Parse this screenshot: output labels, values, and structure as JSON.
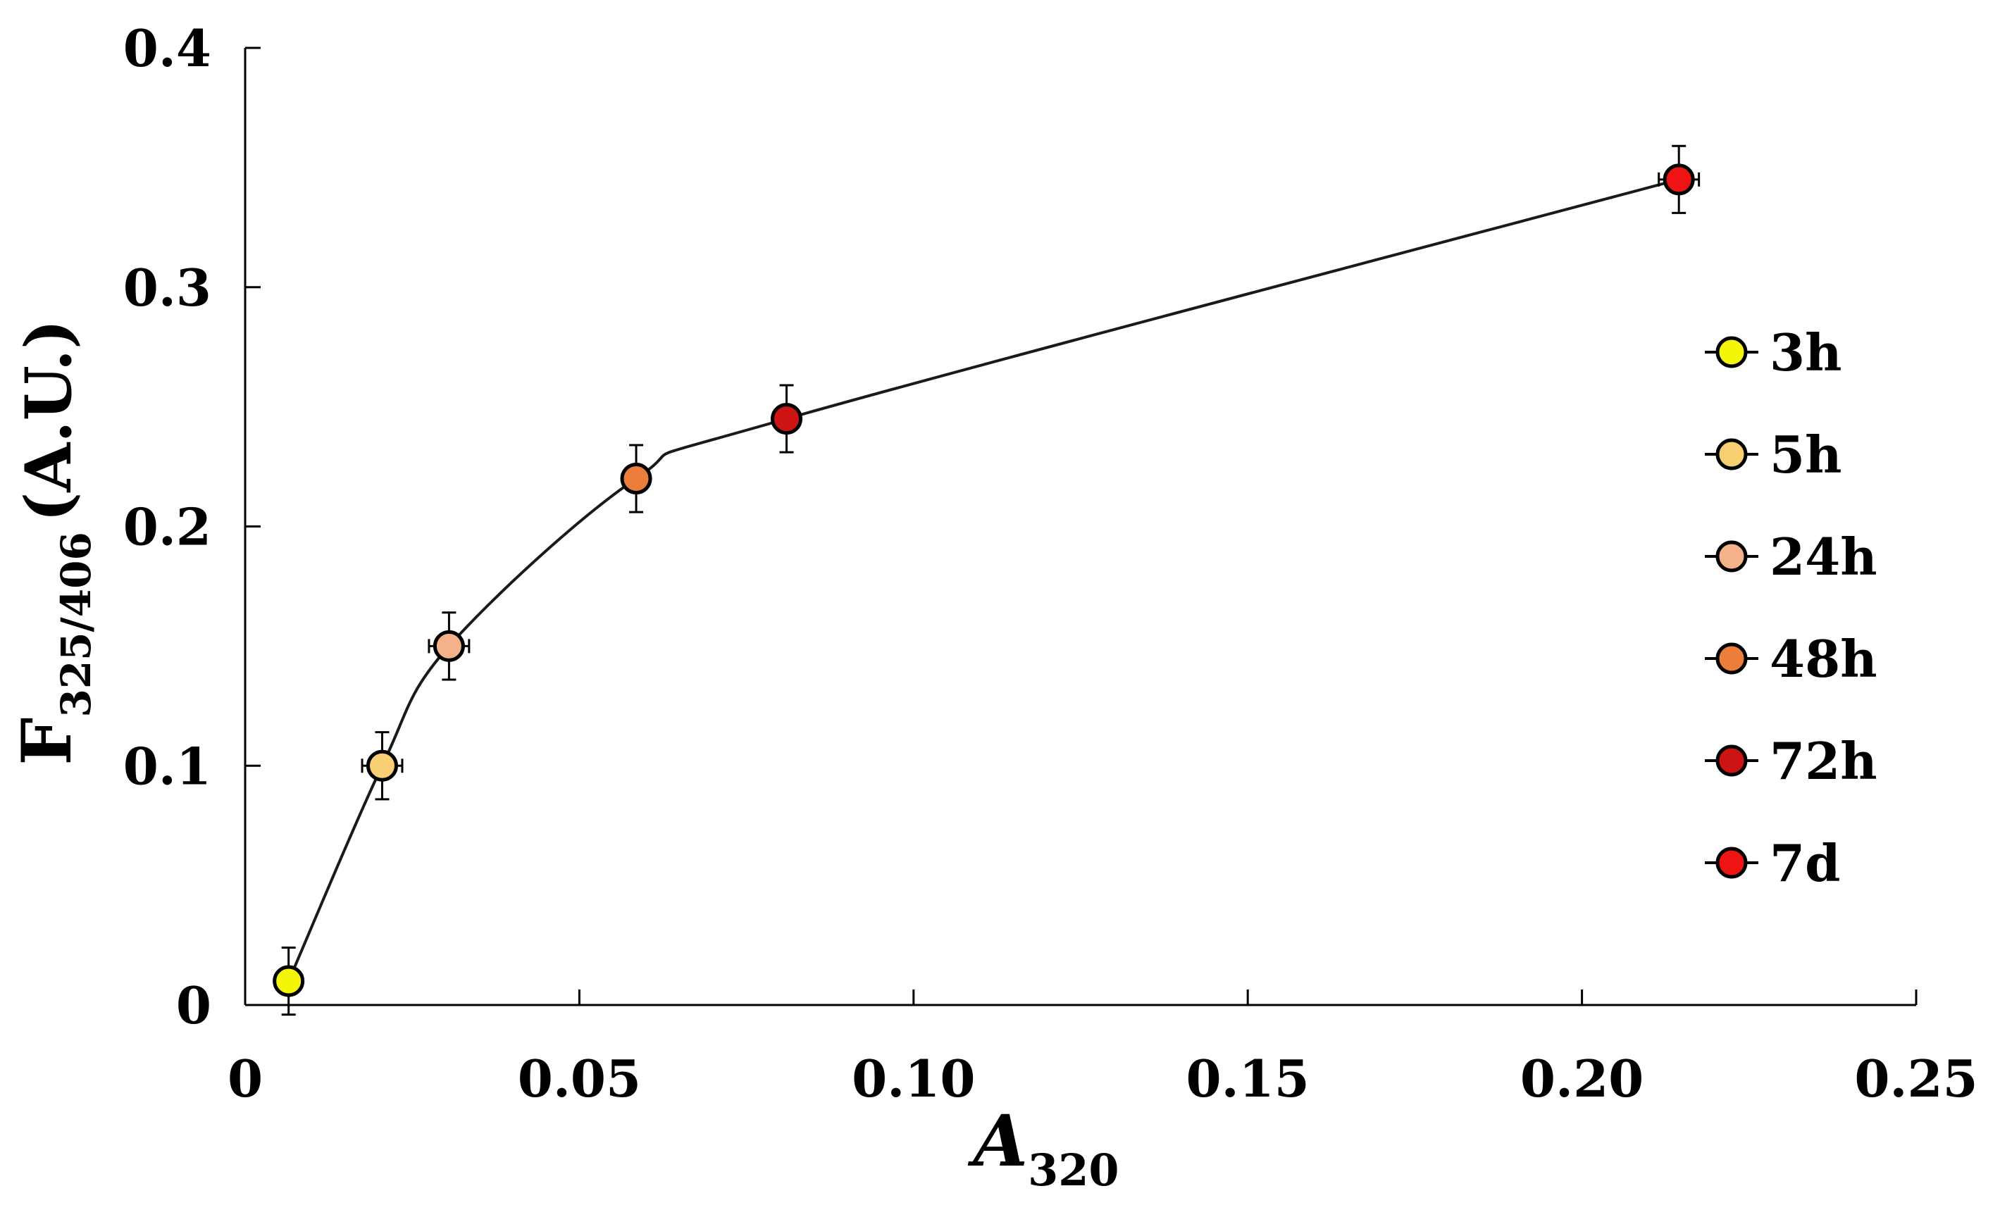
{
  "chart_data": {
    "type": "scatter",
    "xlabel_main": "A",
    "xlabel_sub": "320",
    "ylabel_main": "F",
    "ylabel_sub": "325/406",
    "ylabel_unit": "(A.U.)",
    "xlim": [
      0,
      0.25
    ],
    "ylim": [
      0,
      0.4
    ],
    "x_ticks": [
      0,
      0.05,
      0.1,
      0.15,
      0.2,
      0.25
    ],
    "x_tick_labels": [
      "0",
      "0.05",
      "0.10",
      "0.15",
      "0.20",
      "0.25"
    ],
    "y_ticks": [
      0,
      0.1,
      0.2,
      0.3,
      0.4
    ],
    "y_tick_labels": [
      "0",
      "0.1",
      "0.2",
      "0.3",
      "0.4"
    ],
    "grid": false,
    "legend_position": "right",
    "line_color": "#1a1a1a",
    "points": [
      {
        "label": "3h",
        "x": 0.0065,
        "y": 0.01,
        "xerr": 0.002,
        "yerr": 0.014,
        "color": "#f5f50a"
      },
      {
        "label": "5h",
        "x": 0.0205,
        "y": 0.1,
        "xerr": 0.003,
        "yerr": 0.014,
        "color": "#f8cf73"
      },
      {
        "label": "24h",
        "x": 0.0305,
        "y": 0.15,
        "xerr": 0.003,
        "yerr": 0.014,
        "color": "#f4b28b"
      },
      {
        "label": "48h",
        "x": 0.0585,
        "y": 0.22,
        "xerr": 0.002,
        "yerr": 0.014,
        "color": "#ec7e3c"
      },
      {
        "label": "72h",
        "x": 0.081,
        "y": 0.245,
        "xerr": 0.002,
        "yerr": 0.014,
        "color": "#cc1414"
      },
      {
        "label": "7d",
        "x": 0.2145,
        "y": 0.345,
        "xerr": 0.003,
        "yerr": 0.014,
        "color": "#ee1414"
      }
    ]
  }
}
